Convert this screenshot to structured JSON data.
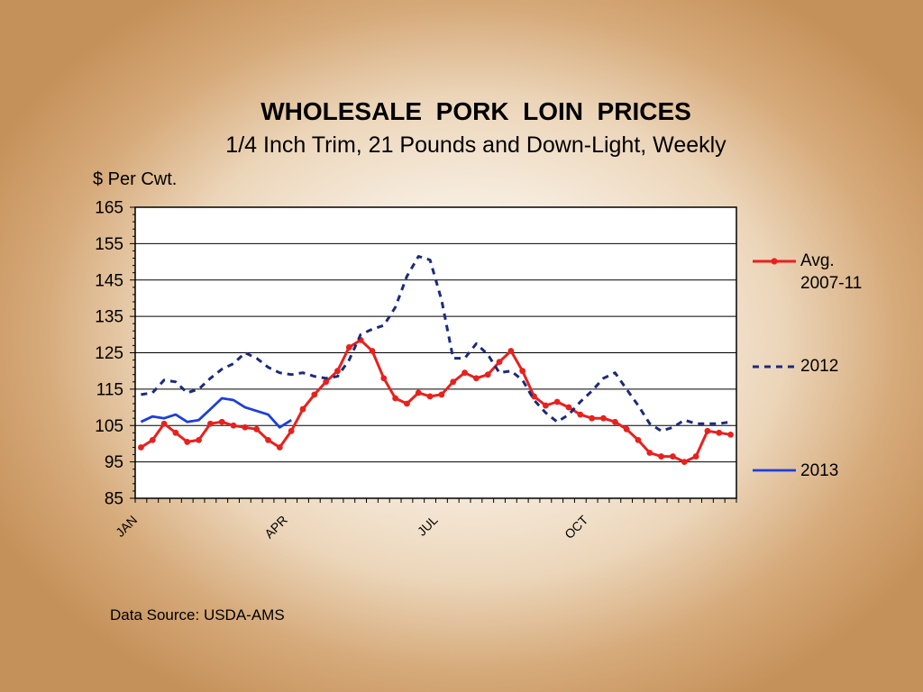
{
  "colors": {
    "plot_background": "#ffffff",
    "gridlines": "#000000"
  },
  "chart_data": {
    "type": "line",
    "title": "WHOLESALE  PORK  LOIN  PRICES",
    "subtitle": "1/4 Inch Trim, 21 Pounds and Down-Light, Weekly",
    "ylabel": "$ Per Cwt.",
    "ylim": [
      85,
      165
    ],
    "yticks": [
      85,
      95,
      105,
      115,
      125,
      135,
      145,
      155,
      165
    ],
    "x_tick_labels": [
      "JAN",
      "APR",
      "JUL",
      "OCT"
    ],
    "grid": "horizontal",
    "legend_position": "right",
    "source": "Data Source: USDA-AMS",
    "series": [
      {
        "name": "Avg. 2007-11",
        "color": "#e8211d",
        "line_style": "solid",
        "markers": true,
        "values": [
          99.0,
          101.0,
          105.5,
          103.0,
          100.5,
          101.0,
          105.5,
          106.0,
          105.0,
          104.5,
          104.0,
          101.0,
          99.0,
          103.5,
          109.5,
          113.5,
          117.0,
          120.0,
          126.5,
          128.5,
          125.5,
          118.0,
          112.5,
          111.0,
          114.0,
          113.0,
          113.5,
          117.0,
          119.5,
          118.0,
          119.0,
          122.5,
          125.5,
          120.0,
          113.0,
          110.5,
          111.5,
          110.0,
          108.0,
          107.0,
          107.0,
          106.0,
          104.0,
          101.0,
          97.5,
          96.5,
          96.5,
          95.0,
          96.5,
          103.5,
          103.0,
          102.5
        ]
      },
      {
        "name": "2012",
        "color": "#1b2a7e",
        "line_style": "dashed",
        "markers": false,
        "values": [
          113.5,
          114.0,
          117.5,
          117.0,
          114.0,
          115.0,
          118.0,
          120.5,
          122.0,
          125.0,
          123.5,
          121.0,
          119.5,
          119.0,
          119.5,
          118.5,
          118.0,
          118.5,
          123.0,
          130.0,
          131.5,
          132.5,
          137.5,
          146.0,
          151.5,
          150.5,
          139.5,
          123.5,
          123.5,
          127.5,
          124.5,
          119.5,
          120.0,
          117.5,
          112.0,
          108.5,
          106.0,
          108.0,
          111.5,
          114.5,
          118.0,
          119.5,
          115.0,
          110.5,
          105.5,
          103.5,
          104.5,
          106.5,
          105.5,
          105.5,
          105.5,
          106.0
        ]
      },
      {
        "name": "2013",
        "color": "#1c3fdc",
        "line_style": "solid",
        "markers": false,
        "values": [
          106.0,
          107.5,
          107.0,
          108.0,
          106.0,
          106.5,
          109.5,
          112.5,
          112.0,
          110.0,
          109.0,
          108.0,
          104.5,
          106.5
        ]
      }
    ]
  }
}
